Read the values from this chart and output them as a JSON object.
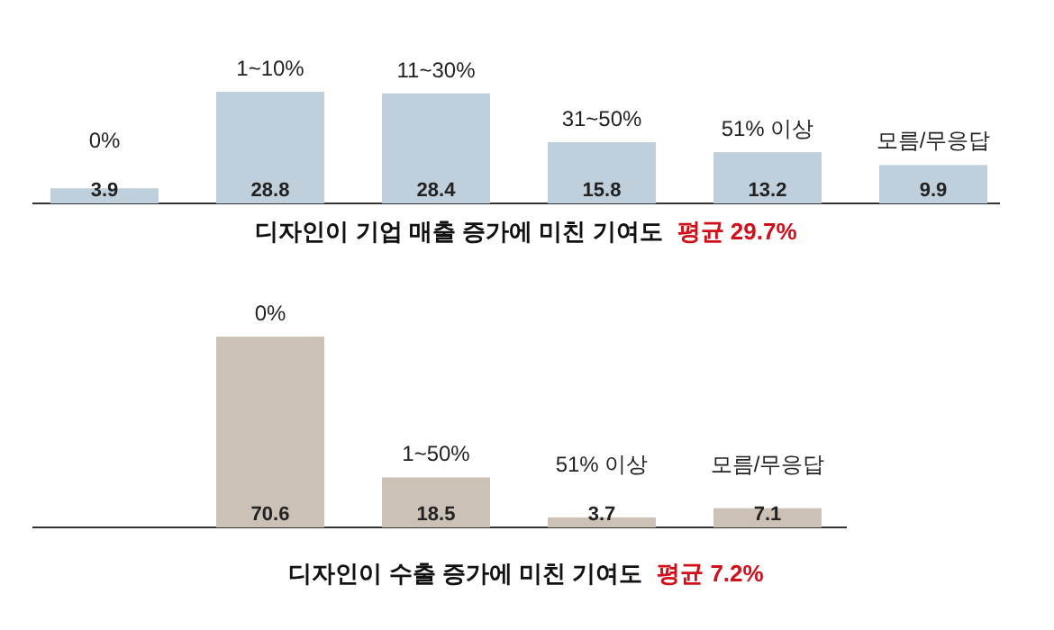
{
  "chart_data": [
    {
      "type": "bar",
      "title": "디자인이 기업 매출 증가에 미친 기여도",
      "subtitle": "평균 29.7%",
      "categories": [
        "0%",
        "1~10%",
        "11~30%",
        "31~50%",
        "51% 이상",
        "모름/무응답"
      ],
      "values": [
        3.9,
        28.8,
        28.4,
        15.8,
        13.2,
        9.9
      ],
      "color": "#bfd0dc",
      "data_labels": true
    },
    {
      "type": "bar",
      "title": "디자인이 수출 증가에 미친 기여도",
      "subtitle": "평균 7.2%",
      "categories": [
        "0%",
        "1~50%",
        "51% 이상",
        "모름/무응답"
      ],
      "values": [
        70.6,
        18.5,
        3.7,
        7.1
      ],
      "color": "#cbc1b6",
      "data_labels": true
    }
  ]
}
